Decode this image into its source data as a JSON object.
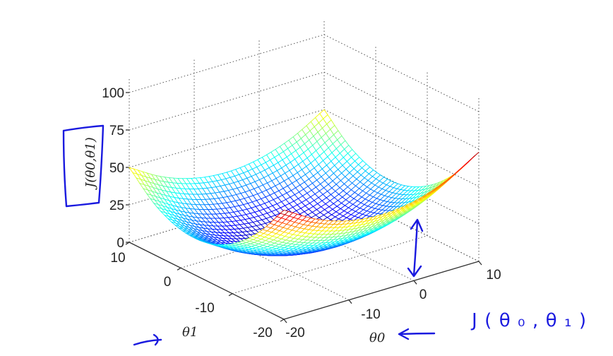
{
  "chart_data": {
    "type": "surface",
    "style": "mesh",
    "colormap": "jet",
    "xlabel": "θ0",
    "ylabel": "θ1",
    "zlabel": "J(θ0,θ1)",
    "xlim": [
      -20,
      10
    ],
    "ylim": [
      -20,
      10
    ],
    "zlim": [
      0,
      110
    ],
    "grid": true,
    "x_ticks": [
      "-20",
      "-10",
      "0",
      "10"
    ],
    "y_ticks": [
      "10",
      "0",
      "-10",
      "-20"
    ],
    "z_ticks": [
      "100",
      "75",
      "50",
      "25",
      "0"
    ],
    "x": [
      -20,
      -15,
      -10,
      -5,
      0,
      5,
      10
    ],
    "y": [
      -20,
      -15,
      -10,
      -5,
      0,
      5,
      10
    ],
    "z_by_x_rows": [
      [
        72.9,
        49.1,
        33.3,
        25.4,
        25.6,
        33.7,
        49.9
      ],
      [
        60.4,
        36.6,
        20.8,
        12.9,
        13.1,
        21.2,
        37.4
      ],
      [
        52.9,
        29.1,
        13.3,
        5.4,
        5.6,
        13.7,
        29.9
      ],
      [
        50.4,
        26.6,
        10.8,
        2.9,
        3.1,
        11.2,
        27.4
      ],
      [
        52.9,
        29.1,
        13.3,
        5.4,
        5.6,
        13.7,
        29.9
      ],
      [
        60.4,
        36.6,
        20.8,
        12.9,
        13.1,
        21.2,
        37.4
      ],
      [
        72.9,
        49.1,
        33.3,
        25.4,
        25.6,
        33.7,
        49.9
      ]
    ]
  },
  "annotations": {
    "handwritten_label": "J(θ₀,θ₁)",
    "ink_color": "#1a1adf"
  }
}
